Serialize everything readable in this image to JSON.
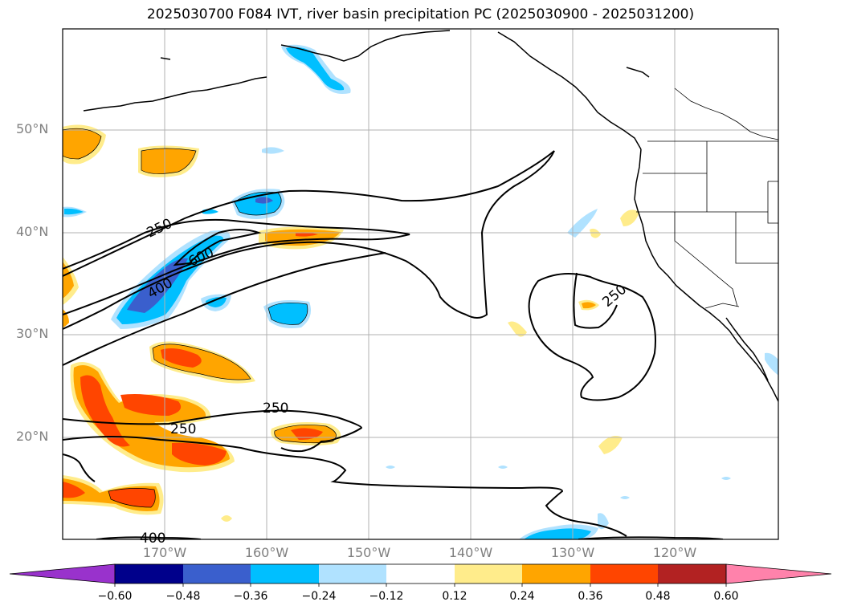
{
  "title": "2025030700 F084 IVT, river basin precipitation PC (2025030900 - 2025031200)",
  "lat_labels": [
    "50°N",
    "40°N",
    "30°N",
    "20°N"
  ],
  "lon_labels": [
    "170°W",
    "160°W",
    "150°W",
    "140°W",
    "130°W",
    "120°W"
  ],
  "ivt_contour_labels": [
    "250",
    "600",
    "400",
    "250",
    "250",
    "250",
    "400"
  ],
  "colorbar": {
    "ticks": [
      "−0.60",
      "−0.48",
      "−0.36",
      "−0.24",
      "−0.12",
      "0.12",
      "0.24",
      "0.36",
      "0.48",
      "0.60"
    ],
    "colors": [
      "#9932cc",
      "#00008b",
      "#3a5fcd",
      "#00bfff",
      "#b0e2ff",
      "#ffffff",
      "#ffec8b",
      "#ffa500",
      "#ff4500",
      "#b22222",
      "#ff82ab"
    ]
  },
  "colors": {
    "neg_light": "#b0e2ff",
    "neg_mid": "#00bfff",
    "neg_dark": "#3a5fcd",
    "pos_light": "#ffec8b",
    "pos_mid": "#ffa500",
    "pos_dark": "#ff4500",
    "gridline": "#b0b0b0"
  }
}
